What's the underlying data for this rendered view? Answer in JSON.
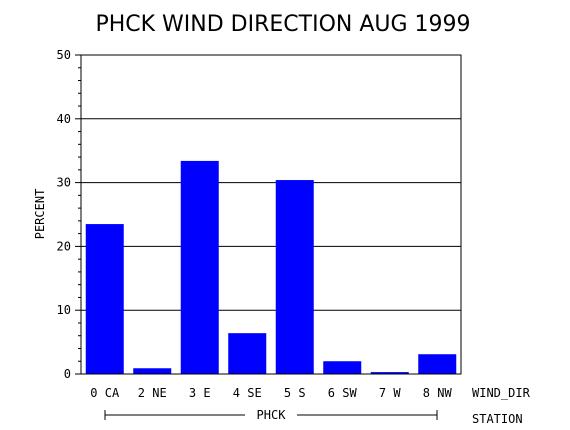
{
  "chart_data": {
    "type": "bar",
    "title": "PHCK WIND DIRECTION AUG 1999",
    "ylabel": "PERCENT",
    "ylim": [
      0,
      50
    ],
    "yticks": [
      0,
      10,
      20,
      30,
      40,
      50
    ],
    "grid": true,
    "categories": [
      "0 CA",
      "2 NE",
      "3 E",
      "4 SE",
      "5 S",
      "6 SW",
      "7 W",
      "8 NW"
    ],
    "values": [
      23.5,
      0.9,
      33.4,
      6.4,
      30.4,
      2.0,
      0.3,
      3.1
    ],
    "bar_color": "#0000ff",
    "x_group_label": "WIND_DIR",
    "station_label": "STATION",
    "station": "PHCK"
  }
}
